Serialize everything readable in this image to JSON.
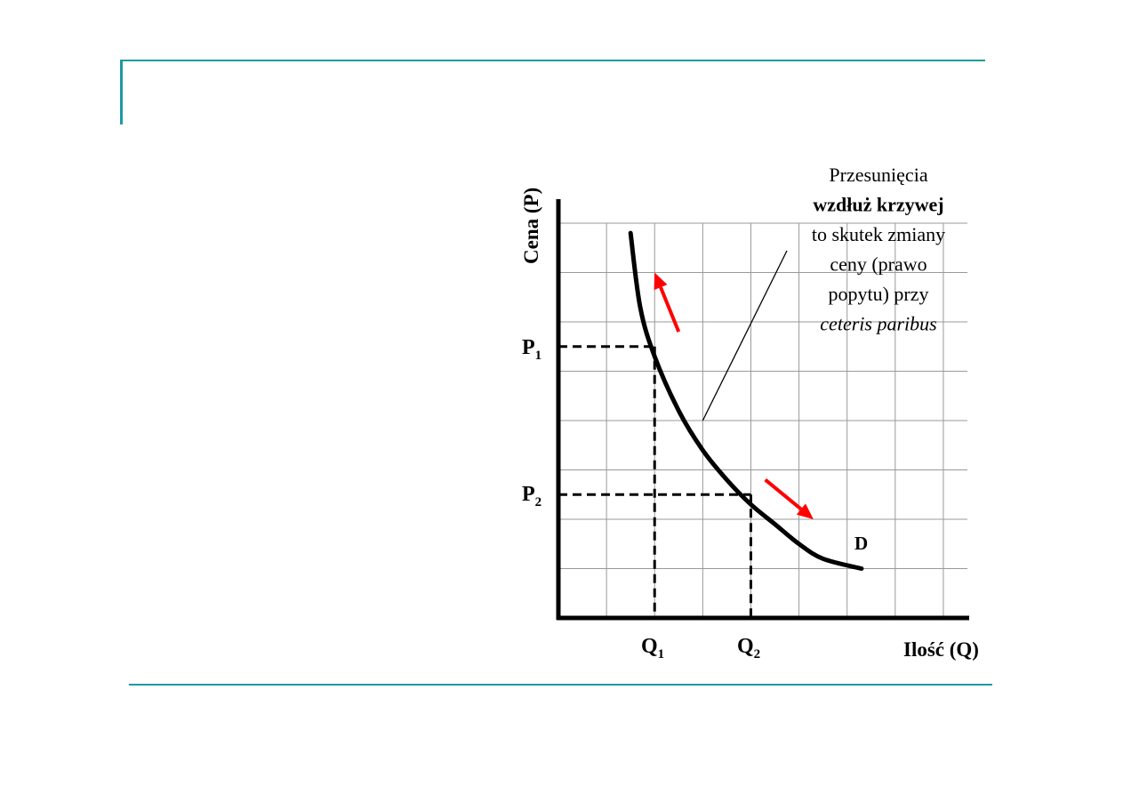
{
  "colors": {
    "frame": "#1e9aa0",
    "grid": "#999999",
    "axis": "#000000",
    "curve": "#000000",
    "arrow": "#ff0000"
  },
  "chart_data": {
    "type": "line",
    "title": "",
    "xlabel": "Ilość (Q)",
    "ylabel": "Cena (P)",
    "grid": true,
    "xlim": [
      0,
      8.5
    ],
    "ylim": [
      0,
      8
    ],
    "series": [
      {
        "name": "D",
        "points": [
          [
            1.5,
            7.8
          ],
          [
            1.7,
            6.3
          ],
          [
            2.0,
            5.3
          ],
          [
            2.5,
            4.2
          ],
          [
            3.0,
            3.4
          ],
          [
            3.5,
            2.8
          ],
          [
            4.0,
            2.3
          ],
          [
            4.5,
            1.9
          ],
          [
            5.0,
            1.5
          ],
          [
            5.5,
            1.2
          ],
          [
            6.3,
            1.0
          ]
        ]
      }
    ],
    "markers": {
      "Q1": 2.0,
      "P1": 5.5,
      "Q2": 4.0,
      "P2": 2.5
    },
    "arrows": [
      {
        "from": [
          2.5,
          5.8
        ],
        "to": [
          2.0,
          7.0
        ]
      },
      {
        "from": [
          4.3,
          2.8
        ],
        "to": [
          5.3,
          2.0
        ]
      }
    ],
    "labels": {
      "p1": {
        "main": "P",
        "sub": "1"
      },
      "p2": {
        "main": "P",
        "sub": "2"
      },
      "q1": {
        "main": "Q",
        "sub": "1"
      },
      "q2": {
        "main": "Q",
        "sub": "2"
      },
      "curve": "D"
    },
    "annotation": {
      "lines": [
        {
          "text": "Przesunięcia",
          "style": "normal"
        },
        {
          "text": "wzdłuż krzywej",
          "style": "bold"
        },
        {
          "text": "to skutek zmiany",
          "style": "normal"
        },
        {
          "text": "ceny (prawo",
          "style": "normal"
        },
        {
          "text": "popytu) przy",
          "style": "normal"
        },
        {
          "text": "ceteris paribus",
          "style": "italic"
        }
      ],
      "pointer_to": [
        3.0,
        4.0
      ]
    }
  }
}
